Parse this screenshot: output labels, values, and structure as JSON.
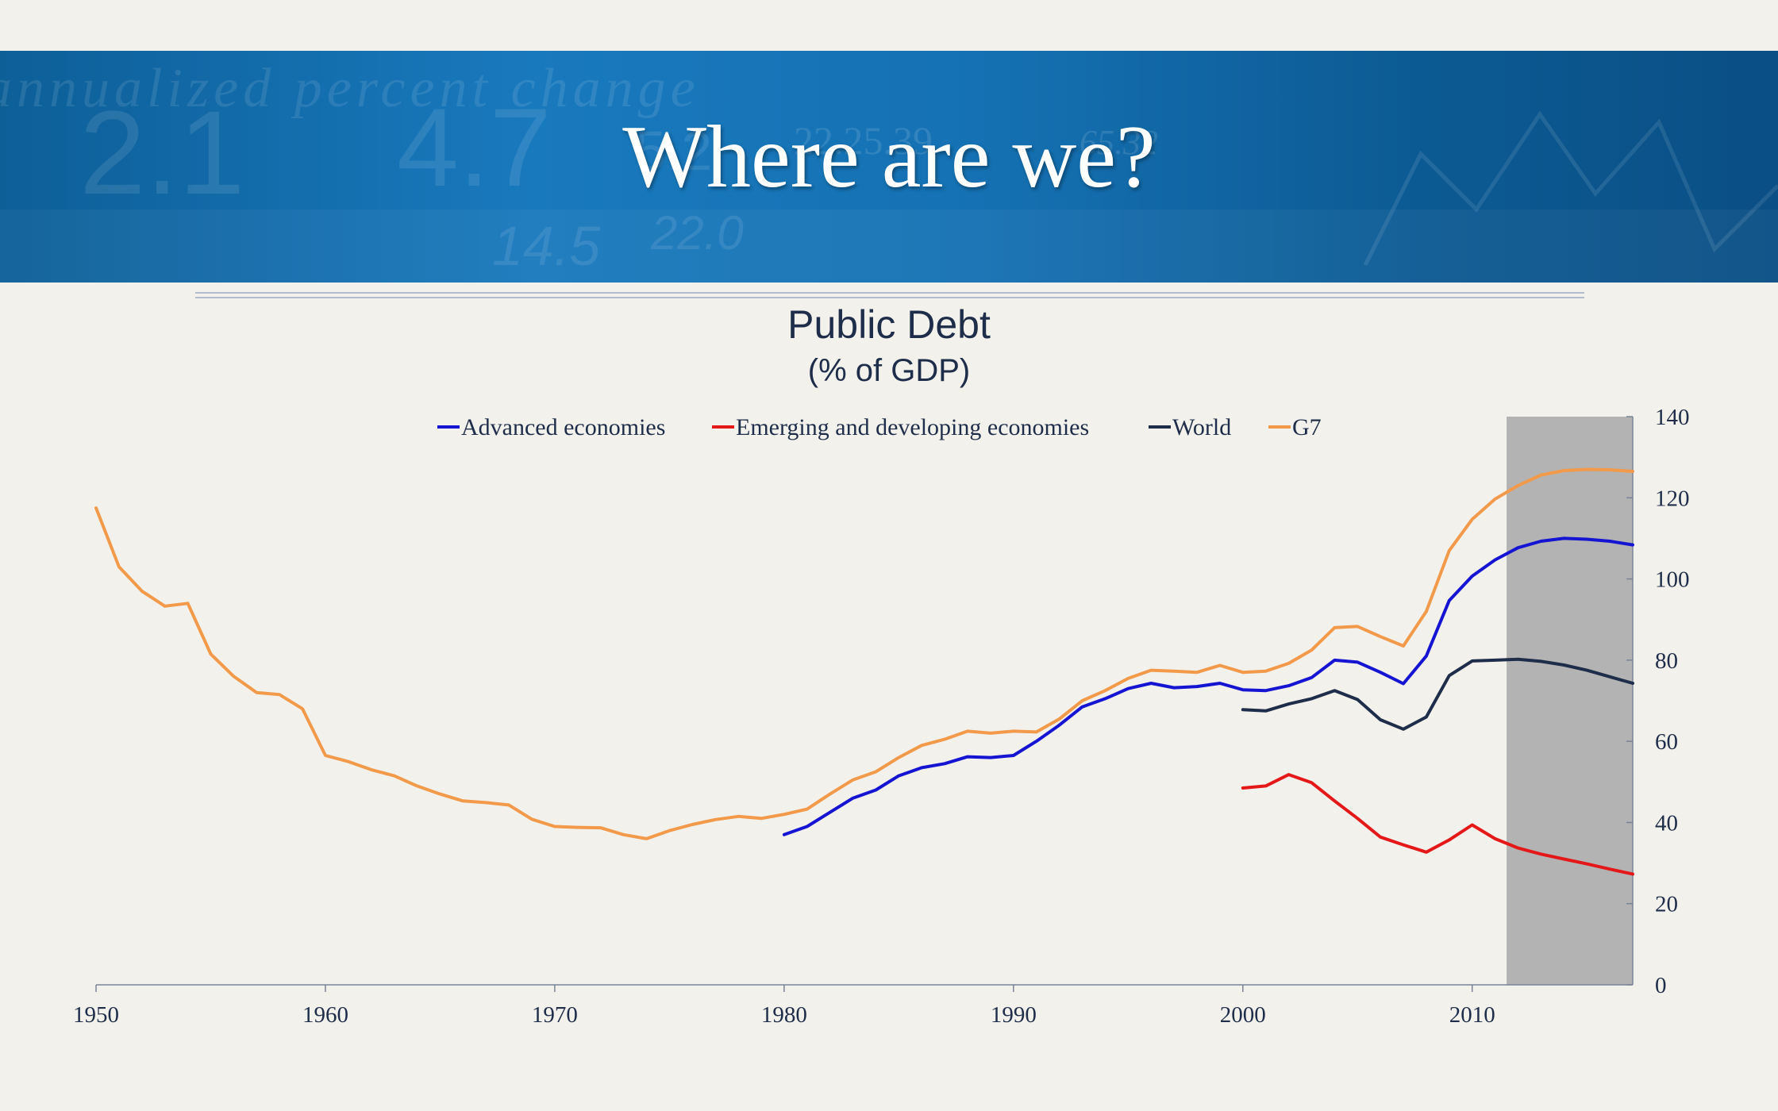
{
  "slide": {
    "title": "Where are we?"
  },
  "banner": {
    "background_numbers": [
      "2.1",
      "4.7",
      "5.2",
      "22.25.39",
      "65.32",
      "14.5",
      "22.0"
    ],
    "background_words": "annualized percent change"
  },
  "colors": {
    "background": "#f3f1ec",
    "banner": "#1571b3",
    "title_text": "#1e2d49",
    "shaded_region": "#b3b3b3"
  },
  "chart_data": {
    "type": "line",
    "title": "Public Debt",
    "subtitle": "(% of GDP)",
    "xlim": [
      1950,
      2017
    ],
    "ylim": [
      0,
      140
    ],
    "x_ticks": [
      1950,
      1960,
      1970,
      1980,
      1990,
      2000,
      2010
    ],
    "y_ticks": [
      0,
      20,
      40,
      60,
      80,
      100,
      120,
      140
    ],
    "y_axis_position": "right",
    "grid": false,
    "legend_position": "top",
    "shaded_region": {
      "x_start": 2011.5,
      "x_end": 2017
    },
    "series": [
      {
        "name": "Advanced economies",
        "color": "#1414d2",
        "x": [
          1980,
          1981,
          1982,
          1983,
          1984,
          1985,
          1986,
          1987,
          1988,
          1989,
          1990,
          1991,
          1992,
          1993,
          1994,
          1995,
          1996,
          1997,
          1998,
          1999,
          2000,
          2001,
          2002,
          2003,
          2004,
          2005,
          2006,
          2007,
          2008,
          2009,
          2010,
          2011,
          2012,
          2013,
          2014,
          2015,
          2016,
          2017
        ],
        "y": [
          37,
          39,
          42.5,
          46,
          48,
          51.5,
          53.5,
          54.5,
          56.2,
          56,
          56.5,
          60,
          64,
          68.5,
          70.5,
          73,
          74.3,
          73.2,
          73.5,
          74.3,
          72.7,
          72.5,
          73.7,
          75.7,
          80,
          79.5,
          77,
          74.2,
          81,
          94.7,
          100.7,
          104.7,
          107.7,
          109.3,
          110,
          109.8,
          109.3,
          108.4
        ]
      },
      {
        "name": "Emerging and developing economies",
        "color": "#e41818",
        "x": [
          2000,
          2001,
          2002,
          2003,
          2004,
          2005,
          2006,
          2007,
          2008,
          2009,
          2010,
          2011,
          2012,
          2013,
          2014,
          2015,
          2016,
          2017
        ],
        "y": [
          48.5,
          49,
          51.8,
          49.8,
          45.3,
          41,
          36.4,
          34.5,
          32.7,
          35.7,
          39.4,
          36,
          33.7,
          32.2,
          31,
          29.8,
          28.5,
          27.3
        ]
      },
      {
        "name": "World",
        "color": "#1e2d49",
        "x": [
          2000,
          2001,
          2002,
          2003,
          2004,
          2005,
          2006,
          2007,
          2008,
          2009,
          2010,
          2011,
          2012,
          2013,
          2014,
          2015,
          2016,
          2017
        ],
        "y": [
          67.8,
          67.5,
          69.2,
          70.5,
          72.5,
          70.3,
          65.3,
          63,
          66,
          76.2,
          79.8,
          80,
          80.2,
          79.7,
          78.8,
          77.5,
          75.9,
          74.3
        ]
      },
      {
        "name": "G7",
        "color": "#f29a4a",
        "x": [
          1950,
          1951,
          1952,
          1953,
          1954,
          1955,
          1956,
          1957,
          1958,
          1959,
          1960,
          1961,
          1962,
          1963,
          1964,
          1965,
          1966,
          1967,
          1968,
          1969,
          1970,
          1971,
          1972,
          1973,
          1974,
          1975,
          1976,
          1977,
          1978,
          1979,
          1980,
          1981,
          1982,
          1983,
          1984,
          1985,
          1986,
          1987,
          1988,
          1989,
          1990,
          1991,
          1992,
          1993,
          1994,
          1995,
          1996,
          1997,
          1998,
          1999,
          2000,
          2001,
          2002,
          2003,
          2004,
          2005,
          2006,
          2007,
          2008,
          2009,
          2010,
          2011,
          2012,
          2013,
          2014,
          2015,
          2016,
          2017
        ],
        "y": [
          117.5,
          103,
          97,
          93.3,
          94,
          81.5,
          76,
          72,
          71.5,
          68,
          56.5,
          55,
          53,
          51.5,
          49,
          47,
          45.3,
          44.9,
          44.3,
          40.8,
          39,
          38.8,
          38.7,
          37,
          36,
          38,
          39.5,
          40.7,
          41.5,
          41,
          42,
          43.3,
          47,
          50.5,
          52.5,
          56,
          59,
          60.5,
          62.5,
          62,
          62.5,
          62.3,
          65.5,
          70,
          72.5,
          75.5,
          77.5,
          77.3,
          77,
          78.7,
          77,
          77.3,
          79.2,
          82.5,
          88,
          88.3,
          85.8,
          83.5,
          92,
          107,
          114.7,
          119.7,
          123,
          125.6,
          126.7,
          127,
          126.9,
          126.5
        ]
      }
    ]
  }
}
